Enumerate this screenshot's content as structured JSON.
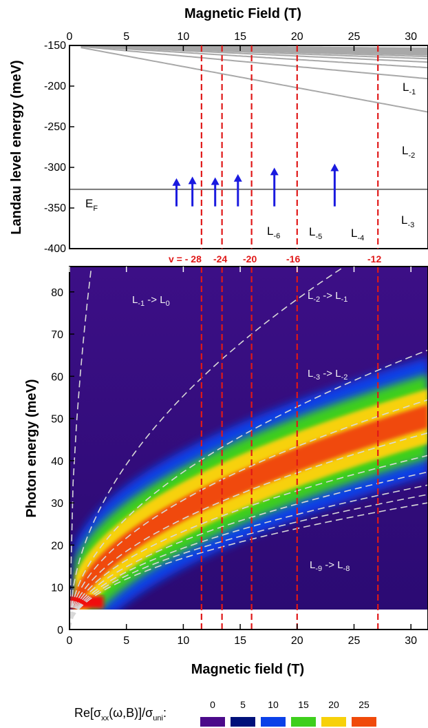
{
  "chart_data": [
    {
      "type": "line",
      "xlabel": "Magnetic Field (T)",
      "ylabel": "Landau level energy (meV)",
      "xlim": [
        0,
        31.5
      ],
      "ylim": [
        -400,
        -150
      ],
      "x_ticks": [
        0,
        5,
        10,
        15,
        20,
        25,
        30
      ],
      "y_ticks": [
        -150,
        -200,
        -250,
        -300,
        -350,
        -400
      ],
      "fermi_energy": -327,
      "fermi_label": {
        "main": "E",
        "sub": "F"
      },
      "landau_levels": [
        -1,
        -2,
        -3,
        -4,
        -5,
        -6,
        -7,
        -8,
        -9,
        -10,
        -11,
        -12,
        -13,
        -14,
        -15,
        -16,
        -17,
        -18,
        -19,
        -20,
        -21,
        -22,
        -23,
        -24
      ],
      "series_labels": [
        {
          "main": "L",
          "sub": "-1"
        },
        {
          "main": "L",
          "sub": "-2"
        },
        {
          "main": "L",
          "sub": "-3"
        },
        {
          "main": "L",
          "sub": "-4"
        },
        {
          "main": "L",
          "sub": "-5"
        },
        {
          "main": "L",
          "sub": "-6"
        }
      ],
      "transition_arrows_B": [
        9.4,
        10.8,
        12.8,
        14.8,
        18.0,
        23.3
      ],
      "transition_arrows_top": [
        -315,
        -313,
        -314,
        -310,
        -302,
        -297
      ],
      "filling_fields_T": [
        11.6,
        13.4,
        16.0,
        20.0,
        27.1
      ],
      "filling_labels": [
        "v = - 28",
        "-24",
        "-20",
        "-16",
        "-12"
      ]
    },
    {
      "type": "heatmap",
      "xlabel": "Magnetic field (T)",
      "ylabel": "Photon energy (meV)",
      "xlim": [
        0,
        31.5
      ],
      "ylim": [
        0,
        86
      ],
      "x_ticks": [
        0,
        5,
        10,
        15,
        20,
        25,
        30
      ],
      "y_ticks": [
        0,
        10,
        20,
        30,
        40,
        50,
        60,
        70,
        80
      ],
      "transitions": [
        {
          "main": "L",
          "sub1": "-1",
          "arrow": " -> ",
          "main2": "L",
          "sub2": "0"
        },
        {
          "main": "L",
          "sub1": "-2",
          "arrow": " -> ",
          "main2": "L",
          "sub2": "-1"
        },
        {
          "main": "L",
          "sub1": "-3",
          "arrow": " -> ",
          "main2": "L",
          "sub2": "-2"
        },
        {
          "main": "L",
          "sub1": "-9",
          "arrow": " -> ",
          "main2": "L",
          "sub2": "-8"
        }
      ],
      "colorbar": {
        "label_pre": "Re[σ",
        "label_sub1": "xx",
        "label_mid": "(ω,B)]/σ",
        "label_sub2": "uni",
        "label_post": ":",
        "ticks": [
          "0",
          "5",
          "10",
          "15",
          "20",
          "25"
        ],
        "colors": [
          "#4b0a8a",
          "#00107a",
          "#0a40e8",
          "#3ecf1c",
          "#f7d10a",
          "#f04a0a"
        ]
      }
    }
  ]
}
